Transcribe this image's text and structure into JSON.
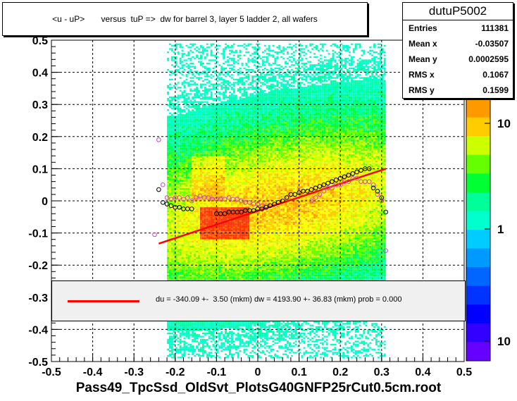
{
  "chart_data": {
    "type": "heatmap",
    "title": "<u - uP>       versus  tuP =>  dw for barrel 3, layer 5 ladder 2, all wafers",
    "xlabel": "Pass49_TpcSsd_OldSvt_PlotsG40GNFP25rCut0.5cm.root",
    "ylabel": "",
    "xlim": [
      -0.5,
      0.5
    ],
    "ylim": [
      -0.5,
      0.5
    ],
    "x_ticks": [
      "-0.5",
      "-0.4",
      "-0.3",
      "-0.2",
      "-0.1",
      "0",
      "0.1",
      "0.2",
      "0.3",
      "0.4",
      "0.5"
    ],
    "y_ticks": [
      "-0.5",
      "-0.4",
      "-0.3",
      "-0.2",
      "-0.1",
      "0",
      "0.1",
      "0.2",
      "0.3",
      "0.4",
      "0.5"
    ],
    "grid": true,
    "colorbar": {
      "scale": "log",
      "tick_labels": [
        "10",
        "1",
        "10"
      ],
      "colors": [
        "#ff9900",
        "#ffcc00",
        "#ccff00",
        "#66ff00",
        "#00ff33",
        "#00ff99",
        "#00ffcc",
        "#00ccff",
        "#0099ff",
        "#0066ff",
        "#0033ff",
        "#0000ff",
        "#3300ff",
        "#6600ff"
      ]
    },
    "fit_line": {
      "color": "#ff0000",
      "x": [
        -0.24,
        0.31
      ],
      "y": [
        -0.133,
        0.1
      ]
    },
    "profile_black": {
      "x": [
        -0.24,
        -0.23,
        -0.22,
        -0.21,
        -0.2,
        -0.19,
        -0.18,
        -0.17,
        -0.16,
        -0.1,
        -0.09,
        -0.08,
        -0.07,
        -0.06,
        -0.05,
        -0.04,
        -0.03,
        -0.02,
        -0.01,
        0.0,
        0.01,
        0.02,
        0.03,
        0.04,
        0.05,
        0.06,
        0.07,
        0.08,
        0.09,
        0.1,
        0.11,
        0.12,
        0.13,
        0.14,
        0.15,
        0.16,
        0.17,
        0.18,
        0.19,
        0.2,
        0.21,
        0.22,
        0.23,
        0.24,
        0.25,
        0.26,
        0.27,
        0.28,
        0.29,
        0.3,
        0.31
      ],
      "y": [
        0.035,
        -0.005,
        -0.01,
        -0.015,
        -0.02,
        -0.02,
        -0.025,
        -0.025,
        -0.025,
        -0.04,
        -0.04,
        -0.04,
        -0.035,
        -0.035,
        -0.035,
        -0.035,
        -0.03,
        -0.03,
        -0.03,
        -0.025,
        -0.025,
        -0.02,
        -0.015,
        -0.01,
        -0.005,
        0.0,
        0.01,
        0.02,
        0.02,
        0.025,
        0.03,
        0.03,
        0.035,
        0.04,
        0.045,
        0.05,
        0.055,
        0.06,
        0.065,
        0.07,
        0.075,
        0.08,
        0.085,
        0.09,
        0.095,
        0.1,
        0.1,
        0.04,
        0.03,
        0.01,
        -0.035
      ]
    },
    "profile_magenta": {
      "x": [
        -0.25,
        -0.24,
        -0.23,
        -0.22,
        -0.21,
        -0.2,
        -0.19,
        -0.18,
        -0.17,
        -0.16,
        -0.15,
        -0.14,
        -0.13,
        -0.12,
        -0.11,
        -0.1,
        -0.09,
        -0.08,
        -0.07,
        -0.06,
        -0.05,
        -0.04,
        -0.03,
        -0.02,
        -0.01,
        0.0,
        0.01,
        0.02,
        0.13,
        0.14,
        0.15,
        0.16,
        0.17,
        0.18,
        0.19,
        0.2,
        0.21,
        0.22,
        0.23,
        0.24,
        0.25,
        0.26,
        0.27,
        0.28,
        0.29,
        0.3,
        0.31
      ],
      "y": [
        -0.105,
        0.19,
        0.05,
        0.01,
        0.005,
        0.01,
        0.01,
        0.005,
        0.01,
        0.0,
        0.01,
        0.015,
        0.01,
        0.01,
        0.005,
        0.005,
        0.005,
        0.005,
        0.01,
        0.005,
        0.005,
        0.0,
        -0.005,
        -0.005,
        -0.01,
        -0.01,
        -0.015,
        -0.015,
        0.0,
        0.01,
        0.02,
        0.03,
        0.04,
        0.04,
        0.05,
        0.05,
        0.06,
        0.06,
        0.07,
        0.07,
        0.06,
        0.06,
        0.06,
        0.05,
        0.02,
        0.0,
        -0.155
      ]
    }
  },
  "title_text": "<u - uP>       versus  tuP =>  dw for barrel 3, layer 5 ladder 2, all wafers",
  "stats": {
    "name": "dutuP5002",
    "rows": [
      {
        "label": "Entries",
        "value": "111381"
      },
      {
        "label": "Mean x",
        "value": "-0.03507"
      },
      {
        "label": "Mean y",
        "value": "0.0002595"
      },
      {
        "label": "RMS x",
        "value": "0.1067"
      },
      {
        "label": "RMS y",
        "value": "0.1599"
      }
    ]
  },
  "legend": {
    "fit_text": "du = -340.09 +-  3.50 (mkm) dw = 4193.90 +- 36.83 (mkm) prob = 0.000"
  }
}
